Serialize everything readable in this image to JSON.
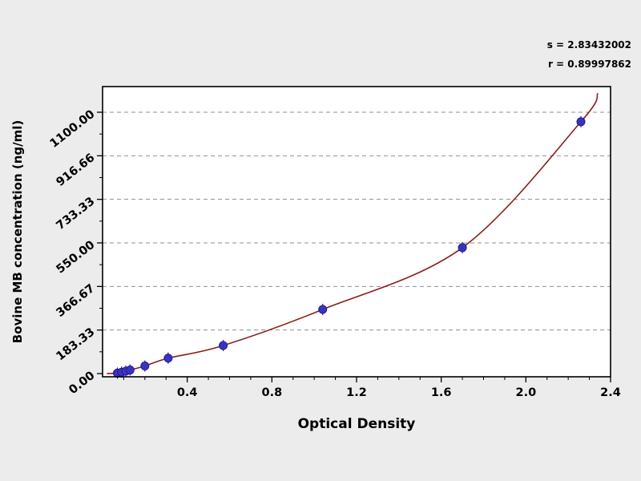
{
  "page": {
    "background": "#ececec",
    "plot_background": "#ffffff"
  },
  "stats": {
    "s_label": "s = 2.83432002",
    "r_label": "r = 0.89997862"
  },
  "chart_data": {
    "type": "scatter",
    "title": "",
    "xlabel": "Optical Density",
    "ylabel": "Bovine MB concentration (ng/ml)",
    "xlim": [
      0,
      2.4
    ],
    "ylim": [
      0,
      1100
    ],
    "x_ticks": [
      0.4,
      0.8,
      1.2,
      1.6,
      2.0,
      2.4
    ],
    "x_tick_labels": [
      "0.4",
      "0.8",
      "1.2",
      "1.6",
      "2.0",
      "2.4"
    ],
    "x_minor_step": 0.1,
    "y_ticks": [
      0,
      183.33,
      366.67,
      550.0,
      733.33,
      916.66,
      1100.0
    ],
    "y_tick_labels": [
      "0.00",
      "183.33",
      "366.67",
      "550.00",
      "733.33",
      "916.66",
      "1100.00"
    ],
    "grid": {
      "horizontal_dashed": true,
      "vertical": false
    },
    "legend": null,
    "point_color": "#3a33c2",
    "point_stroke": "#1f1a8f",
    "curve_color": "#8b1d1d",
    "points": [
      [
        0.07,
        2
      ],
      [
        0.09,
        6
      ],
      [
        0.11,
        10
      ],
      [
        0.13,
        15
      ],
      [
        0.2,
        32
      ],
      [
        0.31,
        65
      ],
      [
        0.57,
        118
      ],
      [
        1.04,
        270
      ],
      [
        1.7,
        530
      ],
      [
        2.26,
        1060
      ]
    ],
    "curve_extension": [
      [
        0.02,
        0
      ],
      [
        2.34,
        1180
      ]
    ]
  }
}
